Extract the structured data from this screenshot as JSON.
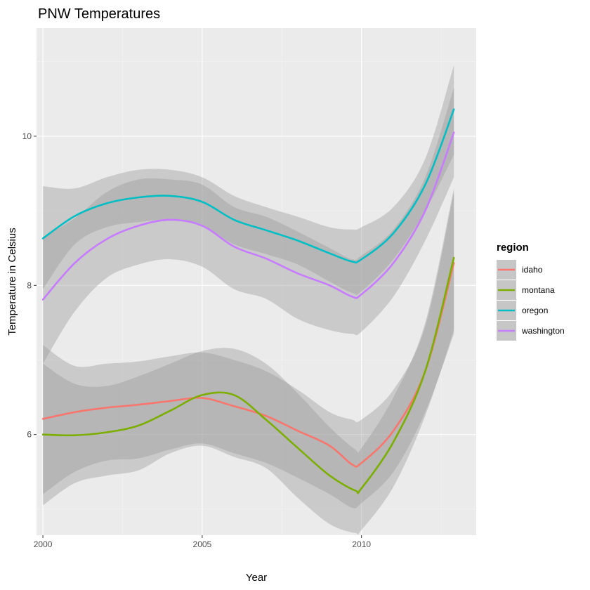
{
  "chart_data": {
    "type": "line",
    "title": "PNW Temperatures",
    "xlabel": "Year",
    "ylabel": "Temperature in Celsius",
    "xlim": [
      1999.8,
      2013.6
    ],
    "ylim": [
      4.65,
      11.45
    ],
    "x_ticks": [
      2000,
      2005,
      2010
    ],
    "x_tick_labels": [
      "2000",
      "2005",
      "2010"
    ],
    "y_ticks": [
      6,
      8,
      10
    ],
    "y_tick_labels": [
      "6",
      "8",
      "10"
    ],
    "grid": true,
    "legend_title": "region",
    "legend_position": "right",
    "series": [
      {
        "name": "idaho",
        "color": "#F8766D",
        "x": [
          2000,
          2001,
          2002,
          2003,
          2004,
          2005,
          2006,
          2007,
          2008,
          2009,
          2009.7,
          2010,
          2011,
          2012,
          2012.9
        ],
        "y": [
          6.21,
          6.3,
          6.36,
          6.4,
          6.45,
          6.49,
          6.38,
          6.25,
          6.05,
          5.85,
          5.6,
          5.62,
          6.05,
          6.85,
          8.3
        ],
        "lower": [
          5.2,
          5.5,
          5.65,
          5.68,
          5.8,
          5.88,
          5.75,
          5.62,
          5.42,
          5.2,
          5.02,
          5.08,
          5.5,
          6.3,
          7.35
        ],
        "upper": [
          7.2,
          6.92,
          6.95,
          6.98,
          7.05,
          7.1,
          7.0,
          6.85,
          6.6,
          6.3,
          6.2,
          6.2,
          6.6,
          7.45,
          9.25
        ]
      },
      {
        "name": "montana",
        "color": "#7CAE00",
        "x": [
          2000,
          2001,
          2002,
          2003,
          2004,
          2005,
          2006,
          2007,
          2008,
          2009,
          2009.8,
          2010,
          2011,
          2012,
          2012.9
        ],
        "y": [
          6.0,
          5.99,
          6.03,
          6.12,
          6.32,
          6.53,
          6.53,
          6.2,
          5.82,
          5.45,
          5.25,
          5.28,
          5.9,
          6.85,
          8.37
        ],
        "lower": [
          5.05,
          5.35,
          5.45,
          5.52,
          5.75,
          5.85,
          5.7,
          5.55,
          5.15,
          4.8,
          4.68,
          4.72,
          5.3,
          6.25,
          7.4
        ],
        "upper": [
          6.95,
          6.68,
          6.65,
          6.78,
          6.95,
          7.12,
          7.15,
          6.95,
          6.55,
          6.1,
          5.8,
          5.82,
          6.5,
          7.5,
          9.3
        ]
      },
      {
        "name": "oregon",
        "color": "#00BFC4",
        "x": [
          2000,
          2001,
          2002,
          2003,
          2004,
          2005,
          2006,
          2007,
          2008,
          2009,
          2009.7,
          2010,
          2011,
          2012,
          2012.9
        ],
        "y": [
          8.63,
          8.93,
          9.1,
          9.18,
          9.2,
          9.12,
          8.88,
          8.74,
          8.6,
          8.43,
          8.32,
          8.35,
          8.7,
          9.35,
          10.36
        ],
        "lower": [
          7.95,
          8.55,
          8.78,
          8.85,
          8.88,
          8.8,
          8.55,
          8.42,
          8.28,
          8.05,
          7.9,
          7.92,
          8.35,
          9.0,
          9.75
        ],
        "upper": [
          9.33,
          9.3,
          9.45,
          9.55,
          9.55,
          9.45,
          9.2,
          9.05,
          8.92,
          8.78,
          8.75,
          8.78,
          9.05,
          9.7,
          10.95
        ]
      },
      {
        "name": "washington",
        "color": "#C77CFF",
        "x": [
          2000,
          2001,
          2002,
          2003,
          2004,
          2005,
          2006,
          2007,
          2008,
          2009,
          2009.7,
          2010,
          2011,
          2012,
          2012.9
        ],
        "y": [
          7.81,
          8.3,
          8.62,
          8.8,
          8.88,
          8.8,
          8.52,
          8.36,
          8.16,
          8.0,
          7.85,
          7.88,
          8.3,
          9.0,
          10.05
        ],
        "lower": [
          6.95,
          7.65,
          8.1,
          8.28,
          8.35,
          8.25,
          7.95,
          7.82,
          7.55,
          7.4,
          7.35,
          7.38,
          7.85,
          8.6,
          9.45
        ],
        "upper": [
          8.65,
          8.9,
          9.25,
          9.42,
          9.42,
          9.35,
          9.05,
          8.92,
          8.72,
          8.5,
          8.35,
          8.4,
          8.75,
          9.45,
          10.65
        ]
      }
    ]
  }
}
